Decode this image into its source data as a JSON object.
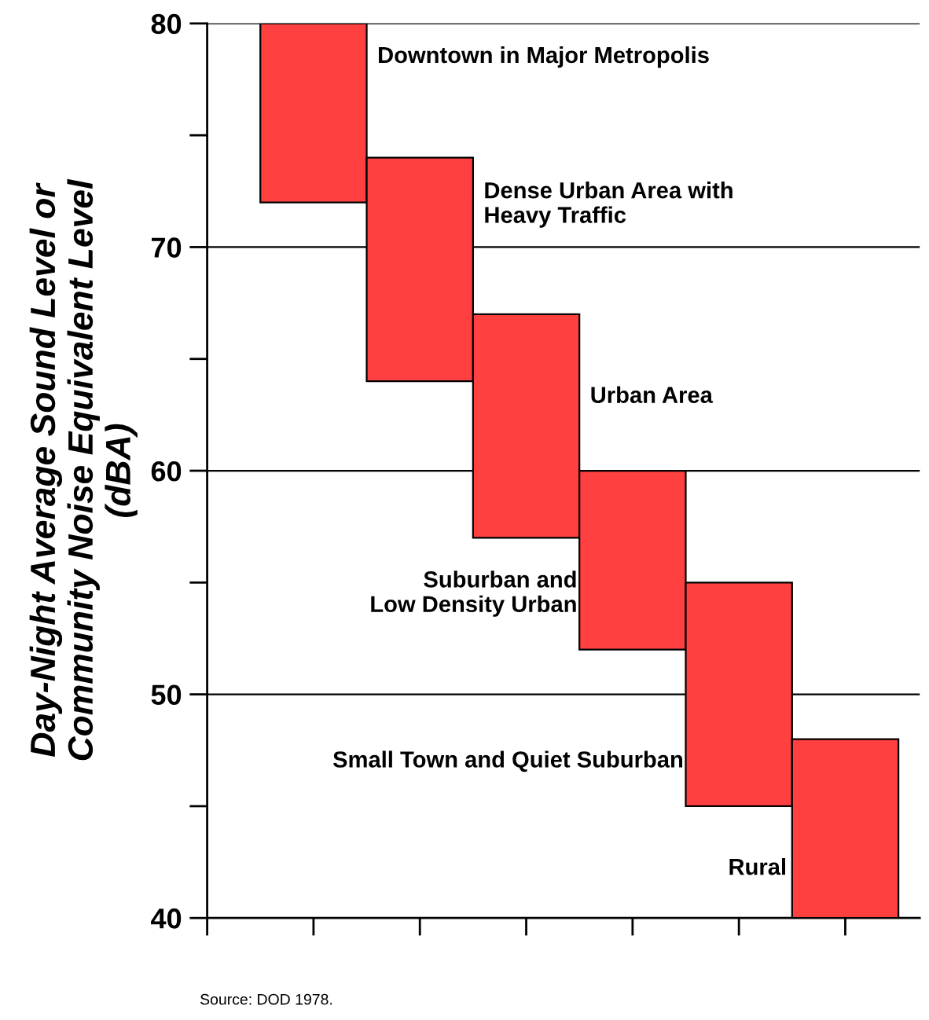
{
  "chart_data": {
    "type": "bar",
    "ylabel": "Day-Night Average Sound Level or\nCommunity Noise Equivalent Level\n(dBA)",
    "categories": [
      null,
      null,
      null,
      null,
      null,
      null,
      null
    ],
    "values": [
      null,
      8,
      10,
      10,
      8,
      10,
      8
    ],
    "base": [
      null,
      72,
      64,
      57,
      52,
      45,
      40
    ],
    "color": "#ff4040",
    "ylim": [
      40,
      80
    ],
    "yticks": [
      40,
      {
        "value": 45,
        "label": null
      },
      50,
      {
        "value": 55,
        "label": null
      },
      60,
      {
        "value": 65,
        "label": null
      },
      70,
      {
        "value": 75,
        "label": null
      },
      80
    ],
    "grid": "y",
    "annotations": [
      "Downtown in Major Metropolis",
      "Dense Urban Area with\nHeavy Traffic",
      "Urban Area",
      "Suburban and\nLow Density Urban",
      "Small Town and Quiet Suburban",
      "Rural",
      "Source: DOD 1978."
    ]
  }
}
